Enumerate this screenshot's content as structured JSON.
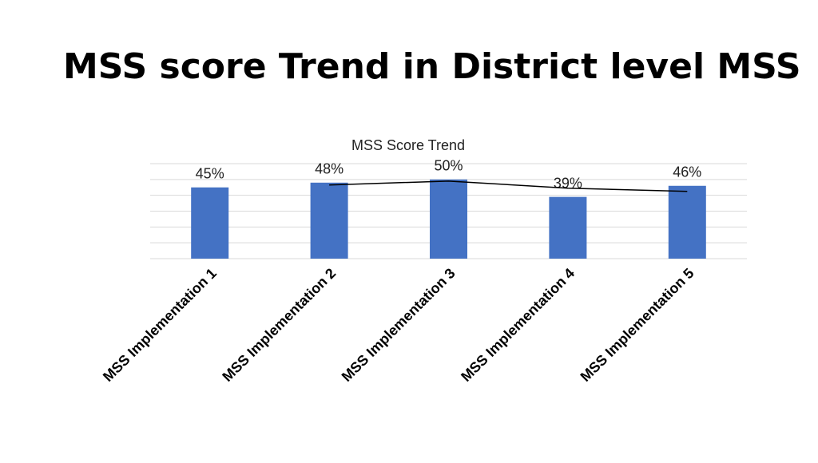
{
  "slide_title": "MSS score Trend in District level MSS",
  "chart_data": {
    "type": "bar",
    "title": "MSS Score Trend",
    "categories": [
      "MSS Implementation 1",
      "MSS Implementation 2",
      "MSS Implementation 3",
      "MSS Implementation 4",
      "MSS Implementation 5"
    ],
    "series": [
      {
        "type": "bar",
        "color": "#4472c4",
        "values": [
          45,
          48,
          50,
          39,
          46
        ],
        "value_labels": [
          "45%",
          "48%",
          "50%",
          "39%",
          "46%"
        ]
      },
      {
        "type": "line",
        "color": "#000000",
        "values": [
          null,
          46.5,
          49,
          44.5,
          42.5
        ]
      }
    ],
    "ylim": [
      0,
      60
    ],
    "yticks": [
      0,
      10,
      20,
      30,
      40,
      50,
      60
    ],
    "ytick_labels": false,
    "grid": true
  }
}
